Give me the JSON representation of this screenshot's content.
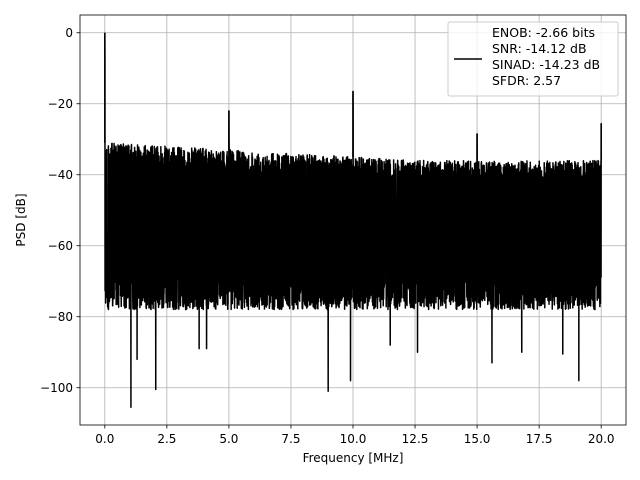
{
  "chart_data": {
    "type": "line",
    "title": "",
    "xlabel": "Frequency [MHz]",
    "ylabel": "PSD [dB]",
    "xlim": [
      -1.0,
      21.0
    ],
    "ylim": [
      -110.5,
      5.0
    ],
    "xticks": [
      0.0,
      2.5,
      5.0,
      7.5,
      10.0,
      12.5,
      15.0,
      17.5,
      20.0
    ],
    "xtick_labels": [
      "0.0",
      "2.5",
      "5.0",
      "7.5",
      "10.0",
      "12.5",
      "15.0",
      "17.5",
      "20.0"
    ],
    "yticks": [
      0,
      -20,
      -40,
      -60,
      -80,
      -100
    ],
    "ytick_labels": [
      "0",
      "−20",
      "−40",
      "−60",
      "−80",
      "−100"
    ],
    "grid": true,
    "legend_position": "top-right",
    "series": [
      {
        "name": "ENOB: -2.66 bits\nSNR: -14.12 dB\nSINAD: -14.23 dB\nSFDR: 2.57",
        "color": "#000000",
        "noise_floor": {
          "x_range": [
            0.0,
            20.0
          ],
          "upper_envelope_db": [
            [
              0.0,
              -31
            ],
            [
              2.5,
              -32
            ],
            [
              5.0,
              -33
            ],
            [
              7.5,
              -34
            ],
            [
              10.0,
              -35
            ],
            [
              12.5,
              -36
            ],
            [
              15.0,
              -36
            ],
            [
              17.5,
              -36
            ],
            [
              20.0,
              -36
            ]
          ],
          "lower_envelope_db": -78
        },
        "peaks": [
          {
            "x": 0.0,
            "y": 0.0
          },
          {
            "x": 5.0,
            "y": -22.0
          },
          {
            "x": 10.0,
            "y": -16.5
          },
          {
            "x": 15.0,
            "y": -28.5
          },
          {
            "x": 20.0,
            "y": -25.5
          }
        ],
        "dips": [
          {
            "x": 1.05,
            "y": -105.5
          },
          {
            "x": 2.05,
            "y": -100.5
          },
          {
            "x": 9.0,
            "y": -101.0
          },
          {
            "x": 9.9,
            "y": -98.0
          },
          {
            "x": 19.1,
            "y": -98.0
          },
          {
            "x": 12.6,
            "y": -90.0
          },
          {
            "x": 16.8,
            "y": -90.0
          },
          {
            "x": 18.45,
            "y": -90.5
          },
          {
            "x": 1.3,
            "y": -92.0
          },
          {
            "x": 3.8,
            "y": -89.0
          },
          {
            "x": 4.1,
            "y": -89.0
          },
          {
            "x": 15.6,
            "y": -93.0
          },
          {
            "x": 11.5,
            "y": -88.0
          }
        ]
      }
    ],
    "legend_lines": [
      "ENOB: -2.66 bits",
      "SNR: -14.12 dB",
      "SINAD: -14.23 dB",
      "SFDR: 2.57"
    ]
  }
}
